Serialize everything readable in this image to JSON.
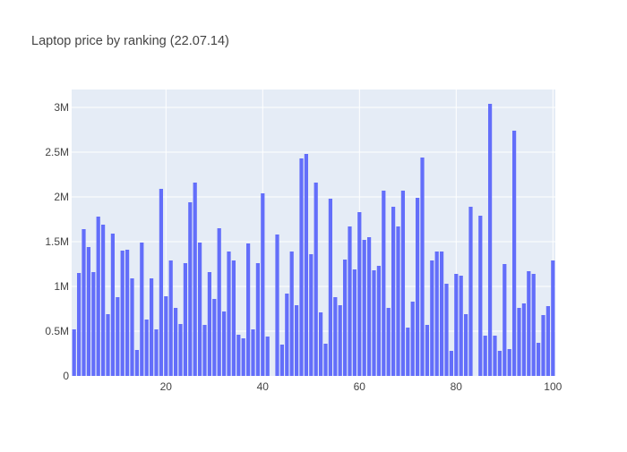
{
  "chart_data": {
    "type": "bar",
    "title": "Laptop price by ranking (22.07.14)",
    "xlabel": "",
    "ylabel": "",
    "xlim": [
      0.5,
      100.5
    ],
    "ylim": [
      0,
      3200000
    ],
    "x_ticks": [
      20,
      40,
      60,
      80,
      100
    ],
    "x_tick_labels": [
      "20",
      "40",
      "60",
      "80",
      "100"
    ],
    "y_ticks": [
      0,
      500000,
      1000000,
      1500000,
      2000000,
      2500000,
      3000000
    ],
    "y_tick_labels": [
      "0",
      "0.5M",
      "1M",
      "1.5M",
      "2M",
      "2.5M",
      "3M"
    ],
    "grid": true,
    "colors": {
      "bar": "#636efa",
      "plot_bg": "#e5ecf6",
      "grid": "#ffffff",
      "text": "#444444",
      "title": "#444444"
    },
    "x": [
      1,
      2,
      3,
      4,
      5,
      6,
      7,
      8,
      9,
      10,
      11,
      12,
      13,
      14,
      15,
      16,
      17,
      18,
      19,
      20,
      21,
      22,
      23,
      24,
      25,
      26,
      27,
      28,
      29,
      30,
      31,
      32,
      33,
      34,
      35,
      36,
      37,
      38,
      39,
      40,
      41,
      42,
      43,
      44,
      45,
      46,
      47,
      48,
      49,
      50,
      51,
      52,
      53,
      54,
      55,
      56,
      57,
      58,
      59,
      60,
      61,
      62,
      63,
      64,
      65,
      66,
      67,
      68,
      69,
      70,
      71,
      72,
      73,
      74,
      75,
      76,
      77,
      78,
      79,
      80,
      81,
      82,
      83,
      84,
      85,
      86,
      87,
      88,
      89,
      90,
      91,
      92,
      93,
      94,
      95,
      96,
      97,
      98,
      99,
      100
    ],
    "values": [
      520000,
      1150000,
      1640000,
      1440000,
      1160000,
      1780000,
      1690000,
      690000,
      1590000,
      880000,
      1400000,
      1410000,
      1090000,
      290000,
      1490000,
      630000,
      1090000,
      520000,
      2090000,
      890000,
      1290000,
      760000,
      580000,
      1260000,
      1940000,
      2160000,
      1490000,
      570000,
      1160000,
      860000,
      1650000,
      720000,
      1390000,
      1290000,
      460000,
      420000,
      1480000,
      520000,
      1260000,
      2040000,
      440000,
      0,
      1580000,
      350000,
      920000,
      1390000,
      790000,
      2430000,
      2480000,
      1360000,
      2160000,
      710000,
      360000,
      1980000,
      880000,
      790000,
      1300000,
      1670000,
      1190000,
      1830000,
      1520000,
      1550000,
      1180000,
      1230000,
      2070000,
      760000,
      1890000,
      1670000,
      2070000,
      540000,
      830000,
      1990000,
      2440000,
      570000,
      1290000,
      1390000,
      1390000,
      1030000,
      280000,
      1140000,
      1120000,
      690000,
      1890000,
      0,
      1790000,
      450000,
      3040000,
      450000,
      280000,
      1250000,
      300000,
      2740000,
      760000,
      810000,
      1170000,
      1140000,
      370000,
      680000,
      780000,
      1290000
    ]
  }
}
